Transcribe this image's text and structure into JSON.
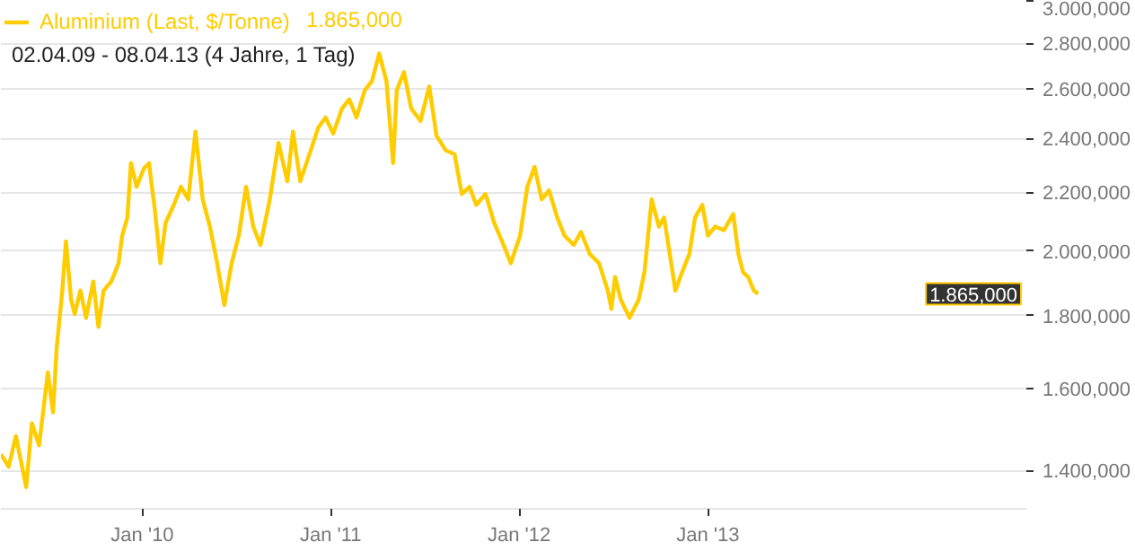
{
  "chart_data": {
    "type": "line",
    "x": [
      "2009-04-02",
      "2009-04-17",
      "2009-05-01",
      "2009-05-21",
      "2009-06-01",
      "2009-06-15",
      "2009-07-02",
      "2009-07-12",
      "2009-07-19",
      "2009-07-30",
      "2009-08-06",
      "2009-08-16",
      "2009-08-23",
      "2009-09-03",
      "2009-09-14",
      "2009-09-28",
      "2009-10-08",
      "2009-10-18",
      "2009-11-02",
      "2009-11-16",
      "2009-11-23",
      "2009-12-03",
      "2009-12-10",
      "2009-12-21",
      "2010-01-04",
      "2010-01-14",
      "2010-01-25",
      "2010-02-05",
      "2010-02-15",
      "2010-03-03",
      "2010-03-17",
      "2010-03-31",
      "2010-04-14",
      "2010-04-28",
      "2010-05-12",
      "2010-05-26",
      "2010-06-09",
      "2010-06-23",
      "2010-07-07",
      "2010-07-21",
      "2010-08-04",
      "2010-08-18",
      "2010-09-05",
      "2010-09-22",
      "2010-10-09",
      "2010-10-20",
      "2010-11-03",
      "2010-11-21",
      "2010-12-08",
      "2010-12-22",
      "2011-01-06",
      "2011-01-23",
      "2011-02-06",
      "2011-02-20",
      "2011-03-08",
      "2011-03-22",
      "2011-04-05",
      "2011-04-19",
      "2011-05-02",
      "2011-05-09",
      "2011-05-23",
      "2011-06-06",
      "2011-06-24",
      "2011-07-11",
      "2011-07-25",
      "2011-08-12",
      "2011-08-29",
      "2011-09-12",
      "2011-09-27",
      "2011-10-10",
      "2011-10-28",
      "2011-11-14",
      "2011-12-02",
      "2011-12-16",
      "2012-01-03",
      "2012-01-17",
      "2012-01-31",
      "2012-02-14",
      "2012-02-28",
      "2012-03-15",
      "2012-03-29",
      "2012-04-16",
      "2012-04-30",
      "2012-05-17",
      "2012-06-04",
      "2012-06-21",
      "2012-06-28",
      "2012-07-05",
      "2012-07-16",
      "2012-08-02",
      "2012-08-20",
      "2012-08-31",
      "2012-09-14",
      "2012-09-28",
      "2012-10-08",
      "2012-10-19",
      "2012-10-30",
      "2012-11-12",
      "2012-11-26",
      "2012-12-07",
      "2012-12-21",
      "2013-01-01",
      "2013-01-15",
      "2013-02-01",
      "2013-02-19",
      "2013-03-01",
      "2013-03-10",
      "2013-03-20",
      "2013-03-31",
      "2013-04-08"
    ],
    "series": [
      {
        "name": "Aluminium (Last, $/Tonne)",
        "color": "#ffcc00",
        "values": [
          1438,
          1409,
          1481,
          1363,
          1512,
          1459,
          1642,
          1539,
          1707,
          1875,
          2031,
          1848,
          1805,
          1875,
          1794,
          1903,
          1768,
          1875,
          1903,
          1960,
          2050,
          2111,
          2306,
          2219,
          2286,
          2306,
          2142,
          1960,
          2092,
          2155,
          2219,
          2174,
          2427,
          2174,
          2080,
          1960,
          1832,
          1960,
          2050,
          2219,
          2080,
          2019,
          2174,
          2383,
          2239,
          2427,
          2239,
          2340,
          2443,
          2483,
          2419,
          2520,
          2557,
          2483,
          2595,
          2634,
          2755,
          2634,
          2306,
          2595,
          2673,
          2520,
          2469,
          2611,
          2411,
          2354,
          2340,
          2193,
          2219,
          2155,
          2193,
          2092,
          2019,
          1960,
          2050,
          2219,
          2292,
          2174,
          2206,
          2111,
          2050,
          2019,
          2062,
          1990,
          1960,
          1875,
          1820,
          1917,
          1848,
          1794,
          1848,
          1932,
          2174,
          2080,
          2111,
          1990,
          1875,
          1932,
          1990,
          2111,
          2155,
          2050,
          2080,
          2068,
          2123,
          1990,
          1932,
          1917,
          1875,
          1865
        ]
      }
    ],
    "log": "y",
    "ylim": [
      1316,
      3000
    ],
    "yticks": [
      {
        "value": 1400,
        "label": "1.400,000"
      },
      {
        "value": 1600,
        "label": "1.600,000"
      },
      {
        "value": 1800,
        "label": "1.800,000"
      },
      {
        "value": 2000,
        "label": "2.000,000"
      },
      {
        "value": 2200,
        "label": "2.200,000"
      },
      {
        "value": 2400,
        "label": "2.400,000"
      },
      {
        "value": 2600,
        "label": "2.600,000"
      },
      {
        "value": 2800,
        "label": "2.800,000"
      },
      {
        "value": 3000,
        "label": "3.000,000"
      }
    ],
    "xlim": [
      "2009-04-02",
      "2014-09-10"
    ],
    "xticks": [
      {
        "value": "2010-01-01",
        "label": "Jan '10"
      },
      {
        "value": "2011-01-01",
        "label": "Jan '11"
      },
      {
        "value": "2012-01-01",
        "label": "Jan '12"
      },
      {
        "value": "2013-01-01",
        "label": "Jan '13"
      }
    ],
    "grid": true,
    "legend": "top left",
    "annotations": [
      "1.865,000",
      "02.04.09 - 08.04.13 (4 Jahre, 1 Tag)"
    ]
  }
}
